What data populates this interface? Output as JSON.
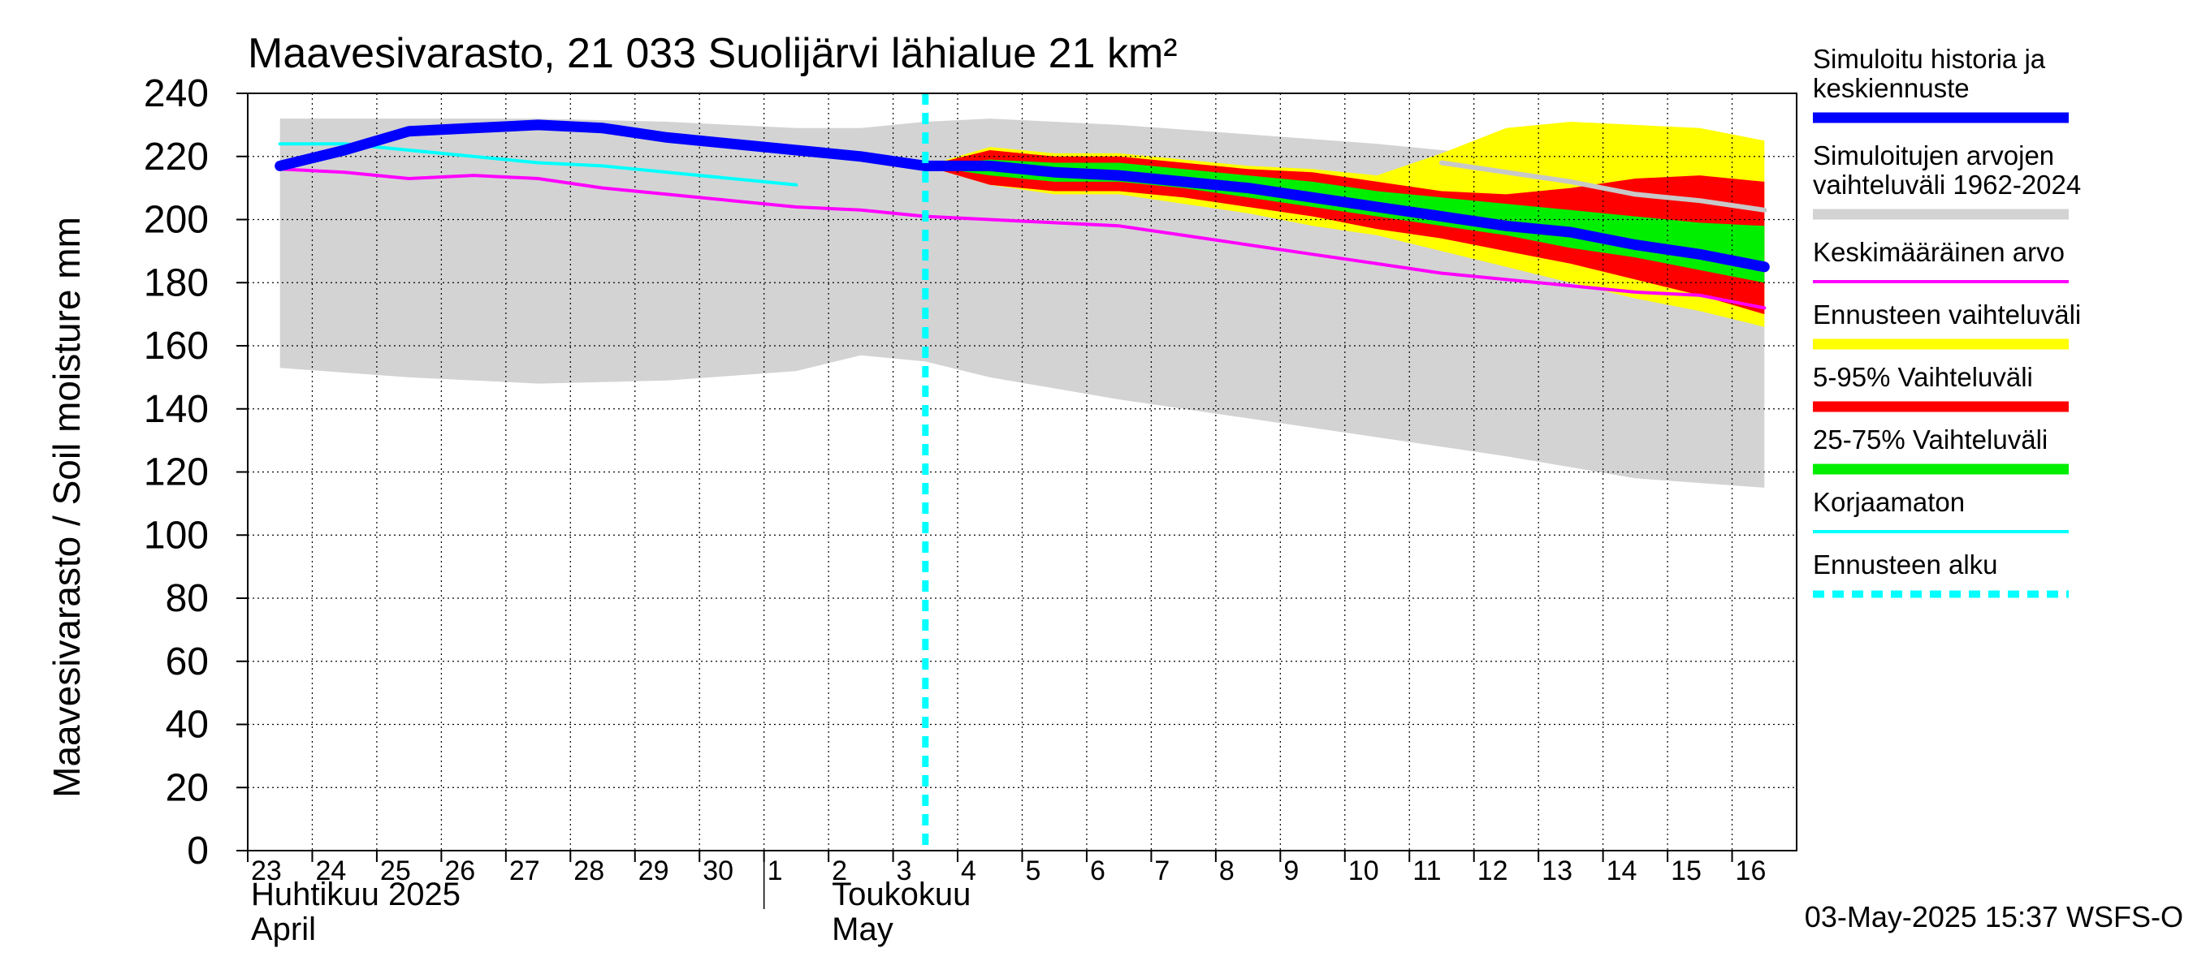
{
  "chart_data": {
    "type": "area",
    "title": "Maavesivarasto, 21 033 Suolijärvi lähialue 21 km²",
    "ylabel": "Maavesivarasto / Soil moisture   mm",
    "ylim": [
      0,
      240
    ],
    "yticks": [
      0,
      20,
      40,
      60,
      80,
      100,
      120,
      140,
      160,
      180,
      200,
      220,
      240
    ],
    "grid": true,
    "legend_position": "right",
    "x_start": "2025-04-23",
    "x_end": "2025-05-16",
    "day_labels": [
      "23",
      "24",
      "25",
      "26",
      "27",
      "28",
      "29",
      "30",
      "1",
      "2",
      "3",
      "4",
      "5",
      "6",
      "7",
      "8",
      "9",
      "10",
      "11",
      "12",
      "13",
      "14",
      "15",
      "16"
    ],
    "month_labels": [
      {
        "date": "2025-04-23",
        "line1": "Huhtikuu  2025",
        "line2": "April"
      },
      {
        "date": "2025-05-02",
        "line1": "Toukokuu",
        "line2": "May"
      }
    ],
    "forecast_start": "2025-05-03",
    "timestamp": "03-May-2025 15:37 WSFS-O",
    "series": [
      {
        "name": "Simuloitujen arvojen vaihteluväli 1962-2024",
        "role": "band",
        "color": "#d3d3d3",
        "x": [
          "2025-04-23",
          "2025-04-25",
          "2025-04-27",
          "2025-04-29",
          "2025-05-01",
          "2025-05-02",
          "2025-05-03",
          "2025-05-04",
          "2025-05-06",
          "2025-05-08",
          "2025-05-10",
          "2025-05-12",
          "2025-05-14",
          "2025-05-16"
        ],
        "lower": [
          153,
          150,
          148,
          149,
          152,
          157,
          155,
          150,
          143,
          137,
          131,
          125,
          118,
          115
        ],
        "upper": [
          232,
          232,
          232,
          231,
          229,
          229,
          231,
          232,
          230,
          227,
          224,
          220,
          214,
          207
        ]
      },
      {
        "name": "Ennusteen vaihteluväli",
        "role": "band",
        "color": "#ffff00",
        "x": [
          "2025-05-03",
          "2025-05-04",
          "2025-05-05",
          "2025-05-06",
          "2025-05-07",
          "2025-05-08",
          "2025-05-09",
          "2025-05-10",
          "2025-05-11",
          "2025-05-12",
          "2025-05-13",
          "2025-05-14",
          "2025-05-15",
          "2025-05-16"
        ],
        "lower": [
          217,
          211,
          208,
          208,
          205,
          202,
          198,
          195,
          190,
          185,
          180,
          175,
          171,
          166
        ],
        "upper": [
          217,
          223,
          221,
          221,
          219,
          217,
          216,
          214,
          221,
          229,
          231,
          230,
          229,
          225
        ]
      },
      {
        "name": "5-95% Vaihteluväli",
        "role": "band",
        "color": "#ff0000",
        "x": [
          "2025-05-03",
          "2025-05-04",
          "2025-05-05",
          "2025-05-06",
          "2025-05-07",
          "2025-05-08",
          "2025-05-09",
          "2025-05-10",
          "2025-05-11",
          "2025-05-12",
          "2025-05-13",
          "2025-05-14",
          "2025-05-15",
          "2025-05-16"
        ],
        "lower": [
          217,
          211,
          209,
          209,
          207,
          204,
          201,
          197,
          194,
          190,
          186,
          181,
          176,
          170
        ],
        "upper": [
          217,
          222,
          220,
          220,
          218,
          216,
          215,
          212,
          209,
          208,
          210,
          213,
          214,
          212
        ]
      },
      {
        "name": "25-75% Vaihteluväli",
        "role": "band",
        "color": "#00ee00",
        "x": [
          "2025-05-03",
          "2025-05-04",
          "2025-05-05",
          "2025-05-06",
          "2025-05-07",
          "2025-05-08",
          "2025-05-09",
          "2025-05-10",
          "2025-05-11",
          "2025-05-12",
          "2025-05-13",
          "2025-05-14",
          "2025-05-15",
          "2025-05-16"
        ],
        "lower": [
          217,
          214,
          212,
          212,
          210,
          207,
          204,
          201,
          198,
          195,
          191,
          188,
          184,
          180
        ],
        "upper": [
          217,
          219,
          218,
          218,
          216,
          214,
          212,
          209,
          207,
          205,
          203,
          201,
          199,
          198
        ]
      },
      {
        "name": "Keskimääräinen arvo",
        "role": "line",
        "color": "#ff00ff",
        "x": [
          "2025-04-23",
          "2025-04-24",
          "2025-04-25",
          "2025-04-26",
          "2025-04-27",
          "2025-04-28",
          "2025-04-29",
          "2025-04-30",
          "2025-05-01",
          "2025-05-02",
          "2025-05-03",
          "2025-05-04",
          "2025-05-05",
          "2025-05-06",
          "2025-05-07",
          "2025-05-08",
          "2025-05-09",
          "2025-05-10",
          "2025-05-11",
          "2025-05-12",
          "2025-05-13",
          "2025-05-14",
          "2025-05-15",
          "2025-05-16"
        ],
        "values": [
          216,
          215,
          213,
          214,
          213,
          210,
          208,
          206,
          204,
          203,
          201,
          200,
          199,
          198,
          195,
          192,
          189,
          186,
          183,
          181,
          179,
          177,
          176,
          172
        ]
      },
      {
        "name": "Korjaamaton",
        "role": "line",
        "color": "#00ffff",
        "x": [
          "2025-04-23",
          "2025-04-24",
          "2025-04-25",
          "2025-04-26",
          "2025-04-27",
          "2025-04-28",
          "2025-04-29",
          "2025-04-30",
          "2025-05-01"
        ],
        "values": [
          224,
          224,
          222,
          220,
          218,
          217,
          215,
          213,
          211
        ]
      },
      {
        "name": "Median of simulated range",
        "role": "line-unlabeled",
        "color": "#c8c8c8",
        "x": [
          "2025-05-11",
          "2025-05-12",
          "2025-05-13",
          "2025-05-14",
          "2025-05-15",
          "2025-05-16"
        ],
        "values": [
          218,
          215,
          212,
          208,
          206,
          203
        ]
      },
      {
        "name": "Simuloitu historia ja keskiennuste",
        "role": "line-thick",
        "color": "#0000ff",
        "x": [
          "2025-04-23",
          "2025-04-24",
          "2025-04-25",
          "2025-04-26",
          "2025-04-27",
          "2025-04-28",
          "2025-04-29",
          "2025-04-30",
          "2025-05-01",
          "2025-05-02",
          "2025-05-03",
          "2025-05-04",
          "2025-05-05",
          "2025-05-06",
          "2025-05-07",
          "2025-05-08",
          "2025-05-09",
          "2025-05-10",
          "2025-05-11",
          "2025-05-12",
          "2025-05-13",
          "2025-05-14",
          "2025-05-15",
          "2025-05-16"
        ],
        "values": [
          217,
          222,
          228,
          229,
          230,
          229,
          226,
          224,
          222,
          220,
          217,
          217,
          215,
          214,
          212,
          210,
          207,
          204,
          201,
          198,
          196,
          192,
          189,
          185
        ]
      }
    ],
    "legend": [
      {
        "label": "Simuloitu historia ja\nkeskiennuste",
        "color": "#0000ff",
        "style": "thick"
      },
      {
        "label": "Simuloitujen arvojen\nvaihteluväli 1962-2024",
        "color": "#d3d3d3",
        "style": "thick"
      },
      {
        "label": "Keskimääräinen arvo",
        "color": "#ff00ff",
        "style": "thin"
      },
      {
        "label": "Ennusteen vaihteluväli",
        "color": "#ffff00",
        "style": "thick"
      },
      {
        "label": "5-95% Vaihteluväli",
        "color": "#ff0000",
        "style": "thick"
      },
      {
        "label": "25-75% Vaihteluväli",
        "color": "#00ee00",
        "style": "thick"
      },
      {
        "label": "Korjaamaton",
        "color": "#00ffff",
        "style": "thin"
      },
      {
        "label": "Ennusteen alku",
        "color": "#00ffff",
        "style": "dashed"
      }
    ]
  }
}
